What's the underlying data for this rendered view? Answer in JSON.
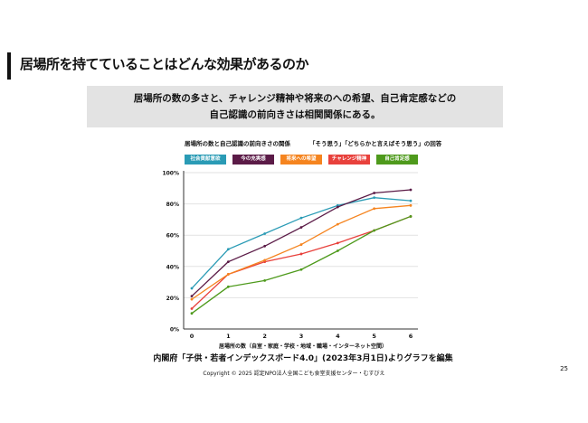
{
  "header": {
    "title": "居場所を持てていることはどんな効果があるのか"
  },
  "summary": {
    "line1": "居場所の数の多さと、チャレンジ精神や将来のへの希望、自己肯定感などの",
    "line2": "自己認識の前向きさは相関関係にある。"
  },
  "chart_data": {
    "type": "line",
    "title": "居場所の数と自己認識の前向きさの関係",
    "subtitle": "「そう思う」「どちらかと言えばそう思う」の回答",
    "xlabel": "居場所の数（自室・家庭・学校・地域・職場・インターネット空間）",
    "ylabel": "",
    "x": [
      0,
      1,
      2,
      3,
      4,
      5,
      6
    ],
    "ylim": [
      0,
      100
    ],
    "yticks": [
      "0%",
      "20%",
      "40%",
      "60%",
      "80%",
      "100%"
    ],
    "grid": true,
    "legend_position": "top",
    "series": [
      {
        "name": "社会貢献意欲",
        "color": "#2a9bb5",
        "values": [
          26,
          51,
          61,
          71,
          79,
          84,
          82
        ]
      },
      {
        "name": "今の充実感",
        "color": "#5b1b47",
        "values": [
          21,
          43,
          53,
          65,
          78,
          87,
          89
        ]
      },
      {
        "name": "将来への希望",
        "color": "#f5841f",
        "values": [
          19,
          35,
          44,
          54,
          67,
          77,
          79
        ]
      },
      {
        "name": "チャレンジ精神",
        "color": "#e8413c",
        "values": [
          13,
          35,
          43,
          48,
          55,
          63,
          72
        ]
      },
      {
        "name": "自己肯定感",
        "color": "#4e9a1c",
        "values": [
          10,
          27,
          31,
          38,
          50,
          63,
          72
        ]
      }
    ]
  },
  "source": "内閣府「子供・若者インデックスボード4.0」(2023年3月1日)よりグラフを編集",
  "copyright": "Copyright © 2025 認定NPO法人全国こども食堂支援センター・むすびえ",
  "page_number": "25"
}
